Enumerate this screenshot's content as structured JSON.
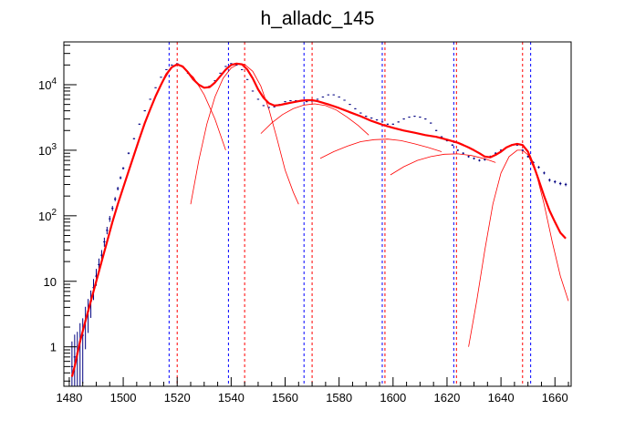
{
  "chart_data": {
    "type": "line",
    "title": "h_alladc_145",
    "xlabel": "",
    "ylabel": "",
    "xlim": [
      1478,
      1666
    ],
    "ylim": [
      0.25,
      45000
    ],
    "y_scale": "log",
    "grid": false,
    "legend": "none",
    "x_ticks": [
      {
        "value": 1480,
        "label": "1480"
      },
      {
        "value": 1500,
        "label": "1500"
      },
      {
        "value": 1520,
        "label": "1520"
      },
      {
        "value": 1540,
        "label": "1540"
      },
      {
        "value": 1560,
        "label": "1560"
      },
      {
        "value": 1580,
        "label": "1580"
      },
      {
        "value": 1600,
        "label": "1600"
      },
      {
        "value": 1620,
        "label": "1620"
      },
      {
        "value": 1640,
        "label": "1640"
      },
      {
        "value": 1660,
        "label": "1660"
      }
    ],
    "y_ticks": [
      {
        "value": 1,
        "base": "1",
        "exp": ""
      },
      {
        "value": 10,
        "base": "10",
        "exp": ""
      },
      {
        "value": 100,
        "base": "10",
        "exp": "2"
      },
      {
        "value": 1000,
        "base": "10",
        "exp": "3"
      },
      {
        "value": 10000,
        "base": "10",
        "exp": "4"
      }
    ],
    "colors": {
      "histogram": "#000080",
      "fit_total": "#ff0000",
      "fit_component": "#ff0000",
      "blue_lines": "#0000ff",
      "red_lines": "#ff0000"
    },
    "histogram": {
      "x": [
        1481,
        1482,
        1483,
        1484,
        1485,
        1486,
        1487,
        1488,
        1489,
        1490,
        1491,
        1492,
        1493,
        1494,
        1495,
        1496,
        1497,
        1498,
        1499,
        1500,
        1502,
        1504,
        1506,
        1508,
        1510,
        1512,
        1514,
        1516,
        1518,
        1520,
        1522,
        1524,
        1526,
        1528,
        1530,
        1532,
        1534,
        1536,
        1538,
        1540,
        1542,
        1544,
        1546,
        1548,
        1550,
        1552,
        1554,
        1556,
        1558,
        1560,
        1562,
        1564,
        1566,
        1568,
        1570,
        1572,
        1574,
        1576,
        1578,
        1580,
        1582,
        1584,
        1586,
        1588,
        1590,
        1592,
        1594,
        1596,
        1598,
        1600,
        1602,
        1604,
        1606,
        1608,
        1610,
        1612,
        1614,
        1616,
        1618,
        1620,
        1622,
        1624,
        1626,
        1628,
        1630,
        1632,
        1634,
        1636,
        1638,
        1640,
        1642,
        1644,
        1646,
        1648,
        1650,
        1652,
        1654,
        1656,
        1658,
        1660,
        1662,
        1664
      ],
      "y": [
        0.5,
        0.7,
        0.8,
        1.2,
        1.5,
        2.5,
        3.5,
        5,
        8,
        12,
        18,
        25,
        40,
        60,
        90,
        130,
        180,
        260,
        380,
        530,
        900,
        1500,
        2500,
        4000,
        6000,
        9000,
        13000,
        17000,
        20000,
        21000,
        19000,
        15000,
        12000,
        10000,
        9000,
        9500,
        11500,
        15000,
        19000,
        21000,
        20000,
        17000,
        12000,
        8000,
        6000,
        4800,
        4500,
        4600,
        5000,
        5500,
        5700,
        5700,
        5600,
        5500,
        5600,
        6000,
        6500,
        7000,
        7000,
        6500,
        5800,
        5000,
        4300,
        3700,
        3300,
        3100,
        2900,
        2700,
        2500,
        2500,
        2700,
        3000,
        3200,
        3300,
        3200,
        3000,
        2600,
        2000,
        1600,
        1400,
        1200,
        1000,
        900,
        800,
        750,
        700,
        720,
        800,
        900,
        1000,
        1100,
        1200,
        1200,
        1000,
        800,
        650,
        550,
        450,
        350,
        330,
        310,
        300
      ]
    },
    "fit_total": {
      "x": [
        1481,
        1482,
        1484,
        1486,
        1488,
        1490,
        1492,
        1494,
        1496,
        1498,
        1500,
        1502,
        1504,
        1506,
        1508,
        1510,
        1512,
        1514,
        1516,
        1518,
        1520,
        1522,
        1524,
        1526,
        1528,
        1530,
        1532,
        1534,
        1536,
        1538,
        1540,
        1542,
        1544,
        1546,
        1548,
        1550,
        1552,
        1554,
        1556,
        1558,
        1560,
        1562,
        1564,
        1566,
        1568,
        1570,
        1572,
        1576,
        1580,
        1584,
        1588,
        1592,
        1596,
        1600,
        1604,
        1608,
        1612,
        1616,
        1620,
        1624,
        1626,
        1628,
        1630,
        1632,
        1634,
        1636,
        1638,
        1640,
        1642,
        1644,
        1646,
        1648,
        1650,
        1652,
        1654,
        1656,
        1658,
        1660,
        1662,
        1664
      ],
      "y": [
        0.35,
        0.5,
        1.2,
        2.5,
        5,
        10,
        20,
        40,
        80,
        150,
        270,
        480,
        850,
        1500,
        2600,
        4200,
        6700,
        10000,
        14500,
        18500,
        20500,
        19000,
        15500,
        12000,
        10000,
        9000,
        9200,
        10800,
        13500,
        17000,
        20000,
        21000,
        20500,
        17000,
        12500,
        8500,
        6300,
        5200,
        4800,
        4900,
        5100,
        5300,
        5500,
        5700,
        5800,
        5800,
        5600,
        5000,
        4400,
        3800,
        3300,
        2800,
        2450,
        2200,
        2000,
        1850,
        1700,
        1600,
        1450,
        1300,
        1200,
        1100,
        1000,
        900,
        800,
        780,
        850,
        950,
        1100,
        1200,
        1250,
        1200,
        950,
        600,
        350,
        200,
        120,
        80,
        55,
        45
      ]
    },
    "fit_components": [
      {
        "x": [
          1486,
          1490,
          1494,
          1498,
          1502,
          1506,
          1510,
          1514,
          1518,
          1520,
          1522,
          1526,
          1530,
          1534,
          1538
        ],
        "y": [
          2.5,
          10,
          40,
          150,
          480,
          1500,
          4200,
          10000,
          18500,
          20000,
          18500,
          13000,
          7000,
          3000,
          1000
        ]
      },
      {
        "x": [
          1525,
          1528,
          1531,
          1534,
          1537,
          1540,
          1543,
          1545,
          1548,
          1551,
          1554,
          1557,
          1560,
          1563,
          1565
        ],
        "y": [
          150,
          700,
          2500,
          6500,
          12500,
          18000,
          21000,
          20500,
          16000,
          9500,
          4200,
          1500,
          500,
          230,
          150
        ]
      },
      {
        "x": [
          1551,
          1555,
          1559,
          1563,
          1567,
          1571,
          1575,
          1579,
          1583,
          1587,
          1591
        ],
        "y": [
          1800,
          2600,
          3500,
          4300,
          4900,
          5100,
          4800,
          4100,
          3200,
          2400,
          1700
        ]
      },
      {
        "x": [
          1573,
          1578,
          1583,
          1588,
          1593,
          1598,
          1603,
          1608,
          1613,
          1618
        ],
        "y": [
          750,
          950,
          1150,
          1350,
          1450,
          1480,
          1400,
          1250,
          1100,
          950
        ]
      },
      {
        "x": [
          1599,
          1604,
          1609,
          1614,
          1619,
          1624,
          1629,
          1634,
          1638
        ],
        "y": [
          420,
          560,
          700,
          800,
          870,
          880,
          830,
          740,
          650
        ]
      },
      {
        "x": [
          1628,
          1631,
          1634,
          1637,
          1640,
          1643,
          1646,
          1648,
          1650,
          1653,
          1656,
          1659,
          1662,
          1665
        ],
        "y": [
          1,
          5,
          30,
          150,
          450,
          800,
          1000,
          1000,
          850,
          450,
          150,
          40,
          12,
          5
        ]
      }
    ],
    "vertical_lines": {
      "blue": [
        1517,
        1539,
        1567,
        1596,
        1622.5,
        1651
      ],
      "red": [
        1520,
        1545,
        1570,
        1597,
        1623.5,
        1648
      ]
    }
  }
}
